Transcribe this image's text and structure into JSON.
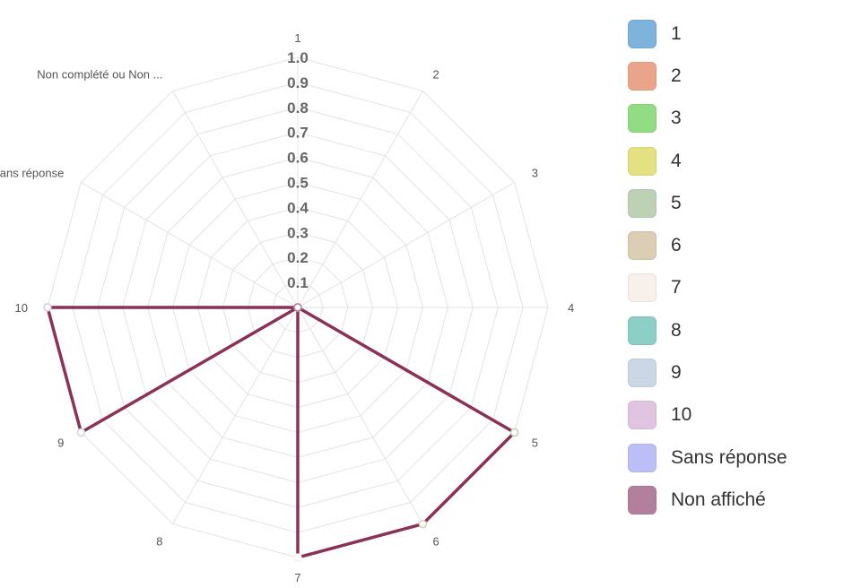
{
  "chart_data": {
    "type": "radar",
    "axes": [
      "1",
      "2",
      "3",
      "4",
      "5",
      "6",
      "7",
      "8",
      "9",
      "10",
      "Sans réponse",
      "Non complété ou Non ..."
    ],
    "ticks": [
      "0.1",
      "0.2",
      "0.3",
      "0.4",
      "0.5",
      "0.6",
      "0.7",
      "0.8",
      "0.9",
      "1.0"
    ],
    "range": [
      0,
      1
    ],
    "series": [
      {
        "name": "Non affiché",
        "color": "#8b3056",
        "values": [
          0,
          0,
          0,
          0,
          1,
          1,
          1,
          0,
          1,
          1,
          0,
          0
        ],
        "point_colors": [
          "#7eb3dc",
          "#e9a48a",
          "#92dd83",
          "#e4e182",
          "#bdd2b5",
          "#dccdb5",
          "#f8f0ea",
          "#8bcfc6",
          "#ccd7e6",
          "#e1c4e2",
          "#bcbef7",
          "#b27f9d"
        ]
      }
    ],
    "legend": {
      "placement": "right",
      "items": [
        {
          "label": "1",
          "color": "#7eb3dc"
        },
        {
          "label": "2",
          "color": "#e9a48a"
        },
        {
          "label": "3",
          "color": "#92dd83"
        },
        {
          "label": "4",
          "color": "#e4e182"
        },
        {
          "label": "5",
          "color": "#bdd2b5"
        },
        {
          "label": "6",
          "color": "#dccdb5"
        },
        {
          "label": "7",
          "color": "#f8f0ea"
        },
        {
          "label": "8",
          "color": "#8bcfc6"
        },
        {
          "label": "9",
          "color": "#ccd7e6"
        },
        {
          "label": "10",
          "color": "#e1c4e2"
        },
        {
          "label": "Sans réponse",
          "color": "#bcbef7"
        },
        {
          "label": "Non affiché",
          "color": "#b27f9d"
        }
      ]
    }
  }
}
